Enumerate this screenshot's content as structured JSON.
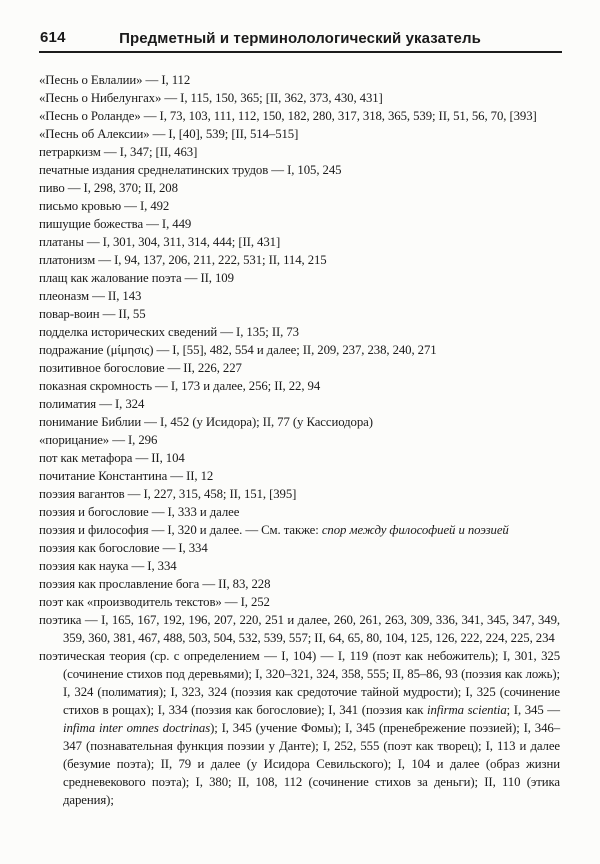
{
  "page": {
    "number": "614",
    "header_title": "Предметный и терминолологический указатель"
  },
  "colors": {
    "background": "#fcfcfa",
    "text": "#1a1a1a",
    "rule": "#1c1c1c"
  },
  "index": {
    "entries": [
      {
        "segments": [
          {
            "t": "«Песнь о Евлалии» — I, 112",
            "i": false
          }
        ]
      },
      {
        "segments": [
          {
            "t": "«Песнь о Нибелунгах» — I, 115, 150, 365; [II, 362, 373, 430, 431]",
            "i": false
          }
        ]
      },
      {
        "segments": [
          {
            "t": "«Песнь о Роланде» — I, 73, 103, 111, 112, 150, 182, 280, 317, 318, 365, 539; II, 51, 56, 70, [393]",
            "i": false
          }
        ]
      },
      {
        "segments": [
          {
            "t": "«Песнь об Алексии» — I, [40], 539; [II, 514–515]",
            "i": false
          }
        ]
      },
      {
        "segments": [
          {
            "t": "петраркизм — I, 347; [II, 463]",
            "i": false
          }
        ]
      },
      {
        "segments": [
          {
            "t": "печатные издания среднелатинских трудов — I, 105, 245",
            "i": false
          }
        ]
      },
      {
        "segments": [
          {
            "t": "пиво — I, 298, 370; II, 208",
            "i": false
          }
        ]
      },
      {
        "segments": [
          {
            "t": "письмо кровью — I, 492",
            "i": false
          }
        ]
      },
      {
        "segments": [
          {
            "t": "пишущие божества — I, 449",
            "i": false
          }
        ]
      },
      {
        "segments": [
          {
            "t": "платаны — I, 301, 304, 311, 314, 444; [II, 431]",
            "i": false
          }
        ]
      },
      {
        "segments": [
          {
            "t": "платонизм — I, 94, 137, 206, 211, 222, 531; II, 114, 215",
            "i": false
          }
        ]
      },
      {
        "segments": [
          {
            "t": "плащ как жалование поэта — II, 109",
            "i": false
          }
        ]
      },
      {
        "segments": [
          {
            "t": "плеоназм — II, 143",
            "i": false
          }
        ]
      },
      {
        "segments": [
          {
            "t": "повар-воин — II, 55",
            "i": false
          }
        ]
      },
      {
        "segments": [
          {
            "t": "подделка исторических сведений — I, 135; II, 73",
            "i": false
          }
        ]
      },
      {
        "segments": [
          {
            "t": "подражание (μίμησις) — I, [55], 482, 554 и далее; II, 209, 237, 238, 240, 271",
            "i": false
          }
        ]
      },
      {
        "segments": [
          {
            "t": "позитивное богословие — II, 226, 227",
            "i": false
          }
        ]
      },
      {
        "segments": [
          {
            "t": "показная скромность — I, 173 и далее, 256; II, 22, 94",
            "i": false
          }
        ]
      },
      {
        "segments": [
          {
            "t": "полиматия — I, 324",
            "i": false
          }
        ]
      },
      {
        "segments": [
          {
            "t": "понимание Библии — I, 452 (у Исидора); II, 77 (у Кассиодора)",
            "i": false
          }
        ]
      },
      {
        "segments": [
          {
            "t": "«порицание» — I, 296",
            "i": false
          }
        ]
      },
      {
        "segments": [
          {
            "t": "пот как метафора — II, 104",
            "i": false
          }
        ]
      },
      {
        "segments": [
          {
            "t": "почитание Константина — II, 12",
            "i": false
          }
        ]
      },
      {
        "segments": [
          {
            "t": "поэзия вагантов — I, 227, 315, 458; II, 151, [395]",
            "i": false
          }
        ]
      },
      {
        "segments": [
          {
            "t": "поэзия и богословие — I, 333 и далее",
            "i": false
          }
        ]
      },
      {
        "segments": [
          {
            "t": "поэзия и философия — I, 320 и далее. — См. также: ",
            "i": false
          },
          {
            "t": "спор между философией и поэзией",
            "i": true
          }
        ]
      },
      {
        "segments": [
          {
            "t": "поэзия как богословие — I, 334",
            "i": false
          }
        ]
      },
      {
        "segments": [
          {
            "t": "поэзия как наука — I, 334",
            "i": false
          }
        ]
      },
      {
        "segments": [
          {
            "t": "поэзия как прославление бога — II, 83, 228",
            "i": false
          }
        ]
      },
      {
        "segments": [
          {
            "t": "поэт как «производитель текстов» — I, 252",
            "i": false
          }
        ]
      },
      {
        "segments": [
          {
            "t": "поэтика — I, 165, 167, 192, 196, 207, 220, 251 и далее, 260, 261, 263, 309, 336, 341, 345, 347, 349, 359, 360, 381, 467, 488, 503, 504, 532, 539, 557; II, 64, 65, 80, 104, 125, 126, 222, 224, 225, 234",
            "i": false
          }
        ]
      },
      {
        "segments": [
          {
            "t": "поэтическая теория (ср. с определением — I, 104) — I, 119 (поэт как небожитель); I, 301, 325 (сочинение стихов под деревьями); I, 320–321, 324, 358, 555; II, 85–86, 93 (поэзия как ложь); I, 324 (полиматия); I, 323, 324 (поэзия как средоточие тайной мудрости); I, 325 (сочинение стихов в рощах); I, 334 (поэзия как богословие); I, 341 (поэзия как ",
            "i": false
          },
          {
            "t": "infirma scientia",
            "i": true
          },
          {
            "t": "; I, 345 — ",
            "i": false
          },
          {
            "t": "infima inter omnes doctrinas",
            "i": true
          },
          {
            "t": "); I, 345 (учение Фомы); I, 345 (пренебрежение поэзией); I, 346–347 (познавательная функция поэзии у Данте); I, 252, 555 (поэт как творец); I, 113 и далее (безумие поэта); II, 79 и далее (у Исидора Севильского); I, 104 и далее (образ жизни средневекового поэта); I, 380; II, 108, 112 (сочинение стихов за деньги); II, 110 (этика дарения);",
            "i": false
          }
        ]
      }
    ]
  }
}
